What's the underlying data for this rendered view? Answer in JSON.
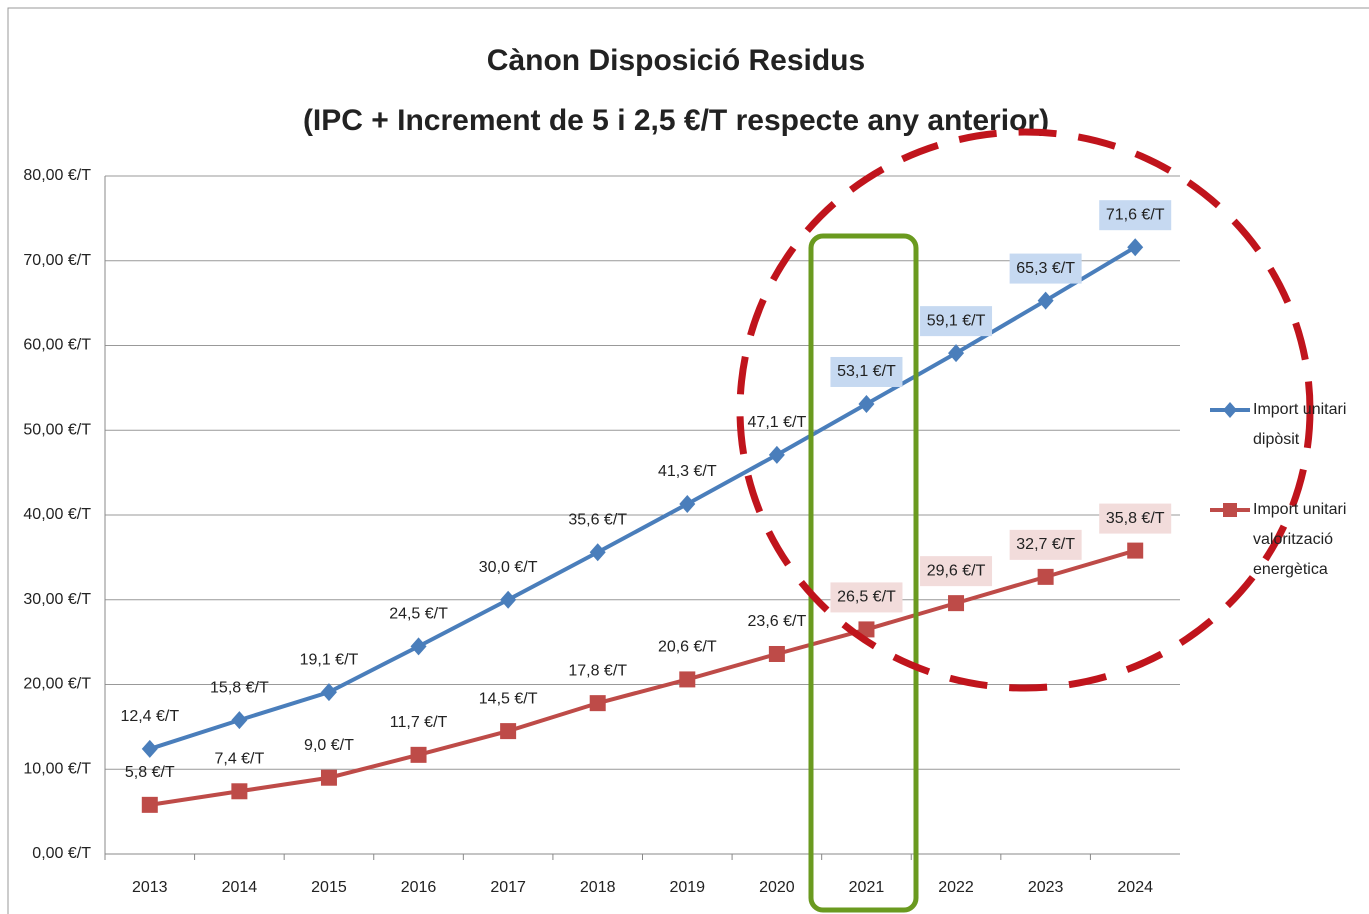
{
  "chart_data": {
    "type": "line",
    "title": "Cànon Disposició Residus",
    "subtitle": "(IPC + Increment de 5 i 2,5 €/T respecte any anterior)",
    "categories": [
      "2013",
      "2014",
      "2015",
      "2016",
      "2017",
      "2018",
      "2019",
      "2020",
      "2021",
      "2022",
      "2023",
      "2024"
    ],
    "series": [
      {
        "name": "Import unitari dipòsit",
        "color": "#4a7ebb",
        "marker": "diamond",
        "values": [
          12.4,
          15.8,
          19.1,
          24.5,
          30.0,
          35.6,
          41.3,
          47.1,
          53.1,
          59.1,
          65.3,
          71.6
        ],
        "value_labels": [
          "12,4 €/T",
          "15,8 €/T",
          "19,1 €/T",
          "24,5 €/T",
          "30,0 €/T",
          "35,6 €/T",
          "41,3 €/T",
          "47,1 €/T",
          "53,1 €/T",
          "59,1 €/T",
          "65,3 €/T",
          "71,6 €/T"
        ]
      },
      {
        "name": "Import unitari valorització energètica",
        "color": "#be4b48",
        "marker": "square",
        "values": [
          5.8,
          7.4,
          9.0,
          11.7,
          14.5,
          17.8,
          20.6,
          23.6,
          26.5,
          29.6,
          32.7,
          35.8
        ],
        "value_labels": [
          "5,8 €/T",
          "7,4 €/T",
          "9,0 €/T",
          "11,7 €/T",
          "14,5 €/T",
          "17,8 €/T",
          "20,6 €/T",
          "23,6 €/T",
          "26,5 €/T",
          "29,6 €/T",
          "32,7 €/T",
          "35,8 €/T"
        ]
      }
    ],
    "ylim": [
      0,
      80
    ],
    "yticks": [
      {
        "value": 0,
        "label": "0,00 €/T"
      },
      {
        "value": 10,
        "label": "10,00 €/T"
      },
      {
        "value": 20,
        "label": "20,00 €/T"
      },
      {
        "value": 30,
        "label": "30,00 €/T"
      },
      {
        "value": 40,
        "label": "40,00 €/T"
      },
      {
        "value": 50,
        "label": "50,00 €/T"
      },
      {
        "value": 60,
        "label": "60,00 €/T"
      },
      {
        "value": 70,
        "label": "70,00 €/T"
      },
      {
        "value": 80,
        "label": "80,00 €/T"
      }
    ],
    "grid": true,
    "legend": "right"
  }
}
